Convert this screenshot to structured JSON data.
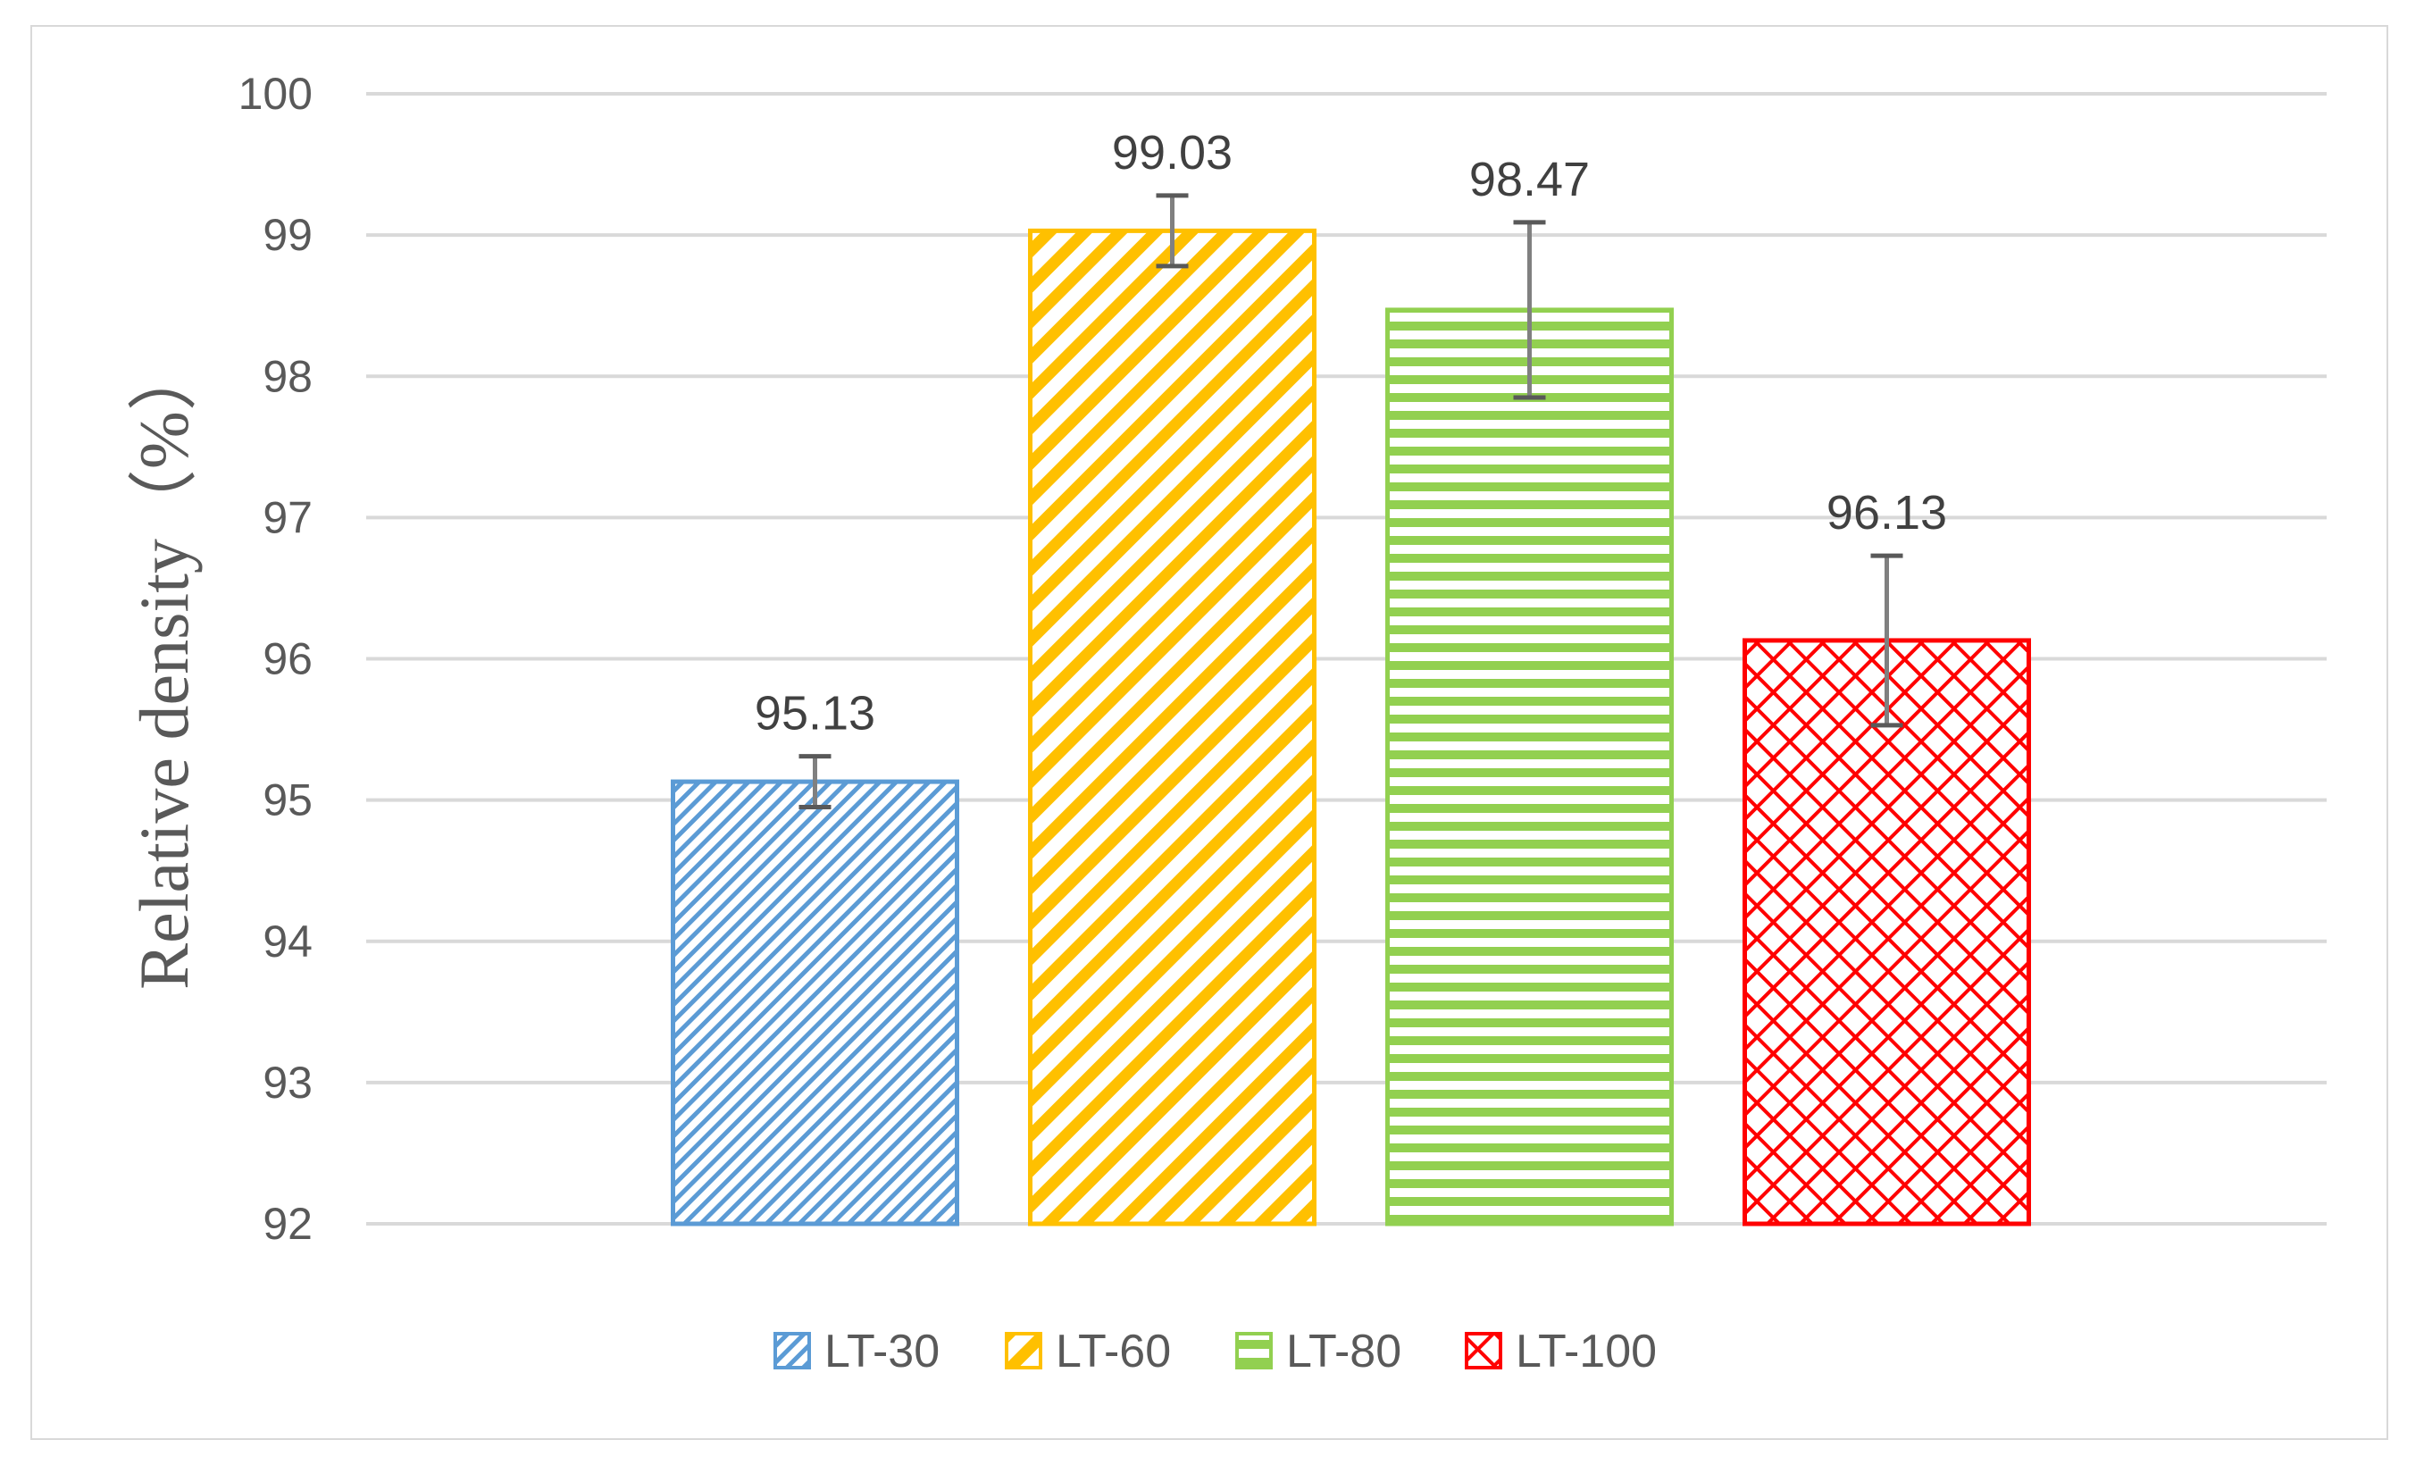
{
  "chart_data": {
    "type": "bar",
    "title": "",
    "xlabel": "",
    "ylabel": "Relative density（%）",
    "ylim": [
      92,
      100
    ],
    "yticks": [
      92,
      93,
      94,
      95,
      96,
      97,
      98,
      99,
      100
    ],
    "grid": true,
    "legend_position": "bottom",
    "series": [
      {
        "name": "LT-30",
        "value": 95.13,
        "label": "95.13",
        "error": 0.18,
        "color": "#5b9bd5",
        "pattern": "fine-diagonal"
      },
      {
        "name": "LT-60",
        "value": 99.03,
        "label": "99.03",
        "error": 0.25,
        "color": "#ffc000",
        "pattern": "wide-diagonal"
      },
      {
        "name": "LT-80",
        "value": 98.47,
        "label": "98.47",
        "error": 0.62,
        "color": "#92d050",
        "pattern": "horizontal"
      },
      {
        "name": "LT-100",
        "value": 96.13,
        "label": "96.13",
        "error": 0.6,
        "color": "#ff0000",
        "pattern": "diamond-grid"
      }
    ]
  }
}
